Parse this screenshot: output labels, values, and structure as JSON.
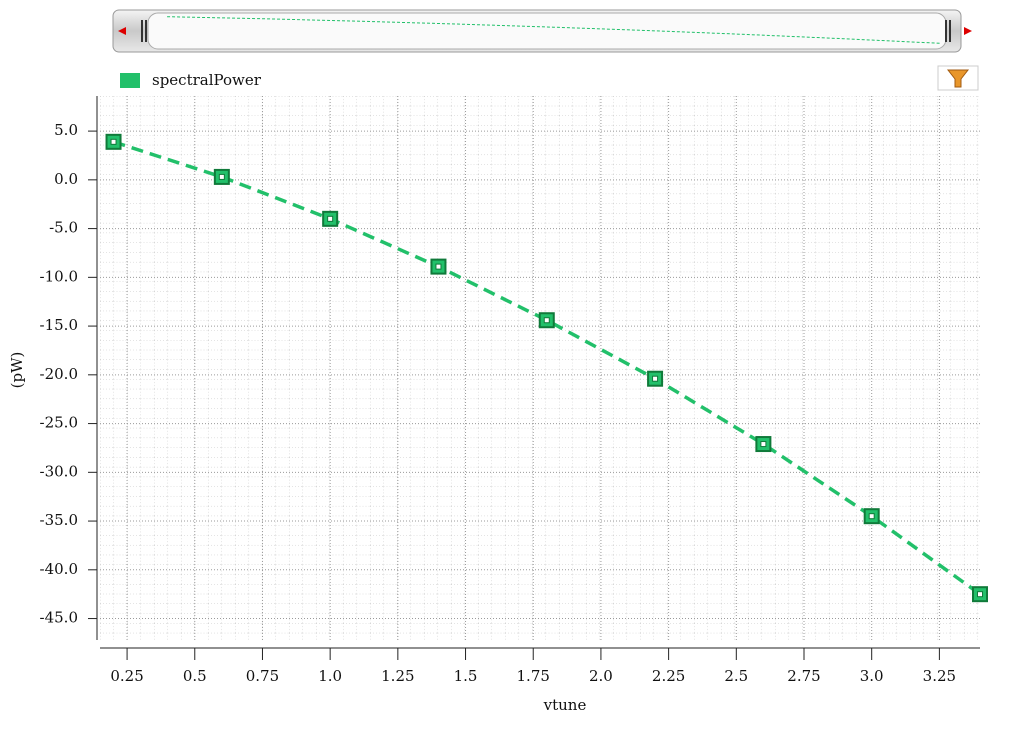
{
  "chart_data": {
    "type": "line",
    "x_label": "vtune",
    "y_label": "(pW)",
    "x": [
      0.2,
      0.6,
      1.0,
      1.4,
      1.8,
      2.2,
      2.6,
      3.0,
      3.4
    ],
    "series": [
      {
        "name": "spectralPower",
        "color": "#22c06a",
        "values": [
          3.9,
          0.3,
          -4.0,
          -8.9,
          -14.4,
          -20.4,
          -27.1,
          -34.5,
          -42.5
        ]
      }
    ],
    "xlim": [
      0.15,
      3.4
    ],
    "ylim": [
      -47.2,
      8.6
    ],
    "xticks": [
      0.25,
      0.5,
      0.75,
      {
        "value": 1.0,
        "label": "1.0"
      },
      1.25,
      1.5,
      1.75,
      {
        "value": 2.0,
        "label": "2.0"
      },
      2.25,
      2.5,
      2.75,
      {
        "value": 3.0,
        "label": "3.0"
      },
      3.25
    ],
    "yticks": [
      {
        "value": 5,
        "label": "5.0"
      },
      {
        "value": 0,
        "label": "0.0"
      },
      {
        "value": -5,
        "label": "-5.0"
      },
      {
        "value": -10,
        "label": "-10.0"
      },
      {
        "value": -15,
        "label": "-15.0"
      },
      {
        "value": -20,
        "label": "-20.0"
      },
      {
        "value": -25,
        "label": "-25.0"
      },
      {
        "value": -30,
        "label": "-30.0"
      },
      {
        "value": -35,
        "label": "-35.0"
      },
      {
        "value": -40,
        "label": "-40.0"
      },
      {
        "value": -45,
        "label": "-45.0"
      }
    ],
    "grid": true
  }
}
